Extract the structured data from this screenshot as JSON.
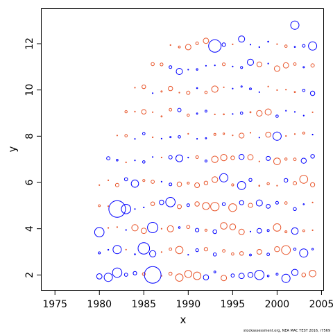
{
  "chart_data": {
    "type": "scatter",
    "title": "",
    "xlabel": "x",
    "ylabel": "y",
    "xlim": [
      1973.5,
      2005.2
    ],
    "ylim": [
      1.35,
      13.5
    ],
    "xticks": [
      1975,
      1980,
      1985,
      1990,
      1995,
      2000,
      2005
    ],
    "yticks": [
      2,
      4,
      6,
      8,
      10,
      12
    ],
    "grid": false,
    "legend": "none",
    "colors": {
      "positive": "#0000ff",
      "negative": "#e8552a"
    },
    "note": "Bubble residual plot: open circles, size ~ |residual|, blue = positive, red = negative",
    "notable_points": [
      {
        "x": 1980,
        "y": 3.85,
        "size": 0.9,
        "series": "positive"
      },
      {
        "x": 1981,
        "y": 1.9,
        "size": 0.8,
        "series": "positive"
      },
      {
        "x": 1982,
        "y": 4.85,
        "size": 1.6,
        "series": "positive"
      },
      {
        "x": 1982,
        "y": 2.1,
        "size": 0.9,
        "series": "positive"
      },
      {
        "x": 1982,
        "y": 3.1,
        "size": 0.8,
        "series": "positive"
      },
      {
        "x": 1983,
        "y": 4.85,
        "size": 0.9,
        "series": "positive"
      },
      {
        "x": 1984,
        "y": 5.95,
        "size": 0.7,
        "series": "positive"
      },
      {
        "x": 1985,
        "y": 3.15,
        "size": 1.1,
        "series": "positive"
      },
      {
        "x": 1986,
        "y": 2.0,
        "size": 1.6,
        "series": "positive"
      },
      {
        "x": 1986,
        "y": 4.05,
        "size": 1.0,
        "series": "positive"
      },
      {
        "x": 1988,
        "y": 5.15,
        "size": 0.9,
        "series": "positive"
      },
      {
        "x": 1989,
        "y": 10.8,
        "size": 0.6,
        "series": "positive"
      },
      {
        "x": 1993,
        "y": 11.9,
        "size": 1.2,
        "series": "positive"
      },
      {
        "x": 1994,
        "y": 6.2,
        "size": 0.8,
        "series": "positive"
      },
      {
        "x": 1996,
        "y": 12.2,
        "size": 0.6,
        "series": "positive"
      },
      {
        "x": 1997,
        "y": 11.2,
        "size": 0.6,
        "series": "positive"
      },
      {
        "x": 1998,
        "y": 2.0,
        "size": 0.9,
        "series": "positive"
      },
      {
        "x": 2000,
        "y": 8.0,
        "size": 0.8,
        "series": "positive"
      },
      {
        "x": 2001,
        "y": 1.85,
        "size": 0.8,
        "series": "positive"
      },
      {
        "x": 2002,
        "y": 12.8,
        "size": 0.8,
        "series": "positive"
      },
      {
        "x": 2003,
        "y": 2.95,
        "size": 0.8,
        "series": "positive"
      },
      {
        "x": 2004,
        "y": 11.9,
        "size": 0.8,
        "series": "positive"
      }
    ]
  },
  "footer": {
    "credit": "stockassessment.org, NEA MAC TEST 2016, r7569"
  }
}
